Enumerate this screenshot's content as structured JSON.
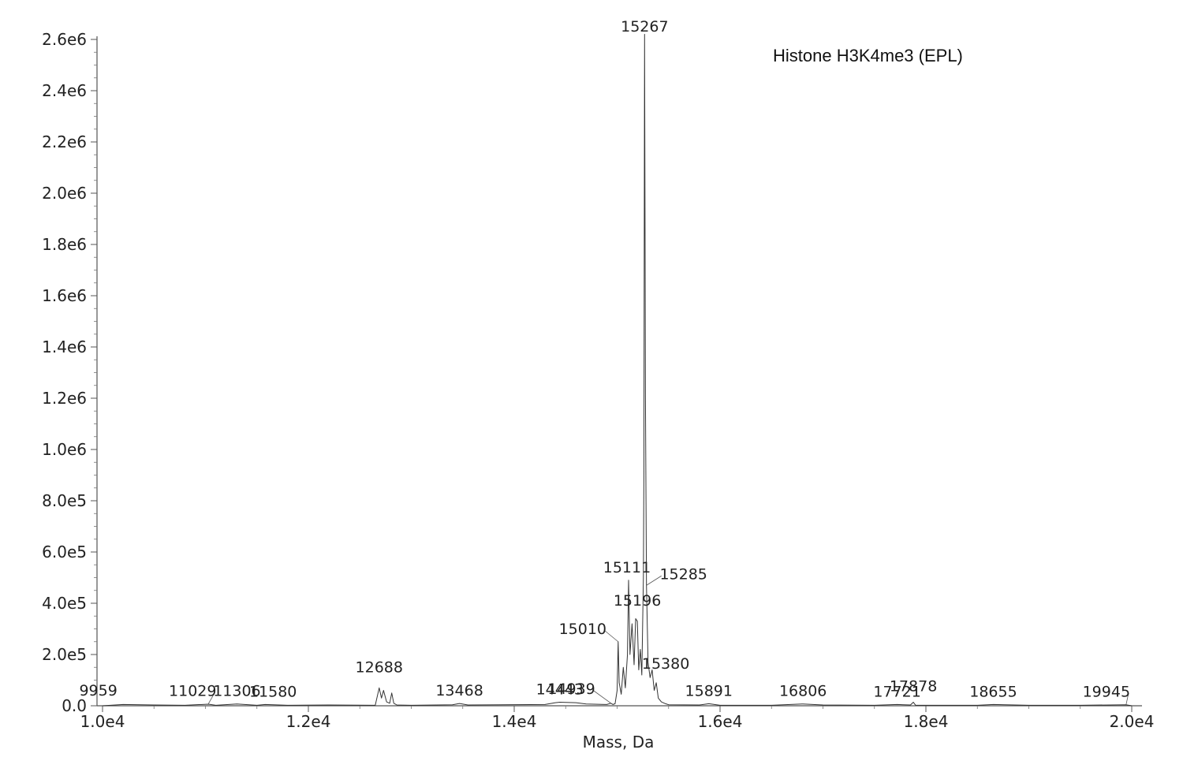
{
  "chart_data": {
    "type": "line",
    "title": "Histone H3K4me3 (EPL)",
    "xlabel": "Mass, Da",
    "ylabel": "",
    "xlim": [
      10000,
      20000
    ],
    "ylim": [
      0,
      2600000
    ],
    "x_ticks": [
      {
        "value": 10000,
        "label": "1.0e4"
      },
      {
        "value": 12000,
        "label": "1.2e4"
      },
      {
        "value": 14000,
        "label": "1.4e4"
      },
      {
        "value": 16000,
        "label": "1.6e4"
      },
      {
        "value": 18000,
        "label": "1.8e4"
      },
      {
        "value": 20000,
        "label": "2.0e4"
      }
    ],
    "y_ticks": [
      {
        "value": 0,
        "label": "0.0"
      },
      {
        "value": 200000,
        "label": "2.0e5"
      },
      {
        "value": 400000,
        "label": "4.0e5"
      },
      {
        "value": 600000,
        "label": "6.0e5"
      },
      {
        "value": 800000,
        "label": "8.0e5"
      },
      {
        "value": 1000000,
        "label": "1.0e6"
      },
      {
        "value": 1200000,
        "label": "1.2e6"
      },
      {
        "value": 1400000,
        "label": "1.4e6"
      },
      {
        "value": 1600000,
        "label": "1.6e6"
      },
      {
        "value": 1800000,
        "label": "1.8e6"
      },
      {
        "value": 2000000,
        "label": "2.0e6"
      },
      {
        "value": 2200000,
        "label": "2.2e6"
      },
      {
        "value": 2400000,
        "label": "2.4e6"
      },
      {
        "value": 2600000,
        "label": "2.6e6"
      }
    ],
    "series": [
      {
        "x": [
          10000,
          10200,
          10500,
          10800,
          11029,
          11100,
          11306,
          11500,
          11580,
          11800,
          12200,
          12650,
          12688,
          12710,
          12730,
          12760,
          12790,
          12810,
          12830,
          12860,
          13000,
          13400,
          13468,
          13550,
          14300,
          14400,
          14443,
          14600,
          14700,
          14900,
          14939,
          14960,
          14980,
          15000,
          15010,
          15020,
          15040,
          15060,
          15080,
          15100,
          15111,
          15125,
          15145,
          15165,
          15180,
          15196,
          15210,
          15225,
          15240,
          15255,
          15260,
          15267,
          15275,
          15285,
          15300,
          15320,
          15340,
          15360,
          15380,
          15400,
          15430,
          15470,
          15500,
          15800,
          15891,
          16000,
          16500,
          16806,
          17000,
          17500,
          17721,
          17850,
          17878,
          17900,
          18500,
          18655,
          19000,
          19500,
          19945,
          20000
        ],
        "y": [
          0,
          5000,
          3000,
          2000,
          6000,
          2000,
          7000,
          2000,
          5000,
          2000,
          3000,
          2000,
          70000,
          30000,
          60000,
          15000,
          10000,
          50000,
          10000,
          3000,
          2000,
          4000,
          9000,
          3000,
          5000,
          12000,
          14000,
          12000,
          7000,
          5000,
          10000,
          5000,
          8000,
          60000,
          250000,
          90000,
          45000,
          150000,
          70000,
          200000,
          490000,
          200000,
          320000,
          160000,
          340000,
          330000,
          140000,
          220000,
          120000,
          500000,
          900000,
          2620000,
          1200000,
          470000,
          170000,
          110000,
          140000,
          60000,
          90000,
          30000,
          15000,
          8000,
          4000,
          3000,
          8000,
          2000,
          2000,
          7000,
          3000,
          2000,
          5000,
          3000,
          14000,
          2000,
          2000,
          5000,
          2000,
          2000,
          4000,
          0
        ]
      }
    ],
    "peak_labels": [
      {
        "text": "9959",
        "x": 9959,
        "y": 10000
      },
      {
        "text": "11029",
        "x": 11029,
        "y": 8000
      },
      {
        "text": "11306",
        "x": 11306,
        "y": 7000
      },
      {
        "text": "11580",
        "x": 11580,
        "y": 5000
      },
      {
        "text": "12688",
        "x": 12688,
        "y": 70000
      },
      {
        "text": "13468",
        "x": 13468,
        "y": 9000
      },
      {
        "text": "14443",
        "x": 14443,
        "y": 14000
      },
      {
        "text": "14939",
        "x": 14939,
        "y": 10000
      },
      {
        "text": "15010",
        "x": 15010,
        "y": 250000
      },
      {
        "text": "15111",
        "x": 15111,
        "y": 490000
      },
      {
        "text": "15196",
        "x": 15196,
        "y": 330000
      },
      {
        "text": "15267",
        "x": 15267,
        "y": 2620000
      },
      {
        "text": "15285",
        "x": 15285,
        "y": 470000
      },
      {
        "text": "15380",
        "x": 15380,
        "y": 90000
      },
      {
        "text": "15891",
        "x": 15891,
        "y": 8000
      },
      {
        "text": "16806",
        "x": 16806,
        "y": 7000
      },
      {
        "text": "17721",
        "x": 17721,
        "y": 5000
      },
      {
        "text": "17878",
        "x": 17878,
        "y": 14000
      },
      {
        "text": "18655",
        "x": 18655,
        "y": 5000
      },
      {
        "text": "19945",
        "x": 19945,
        "y": 4000
      }
    ],
    "grid": false,
    "legend": "none"
  }
}
